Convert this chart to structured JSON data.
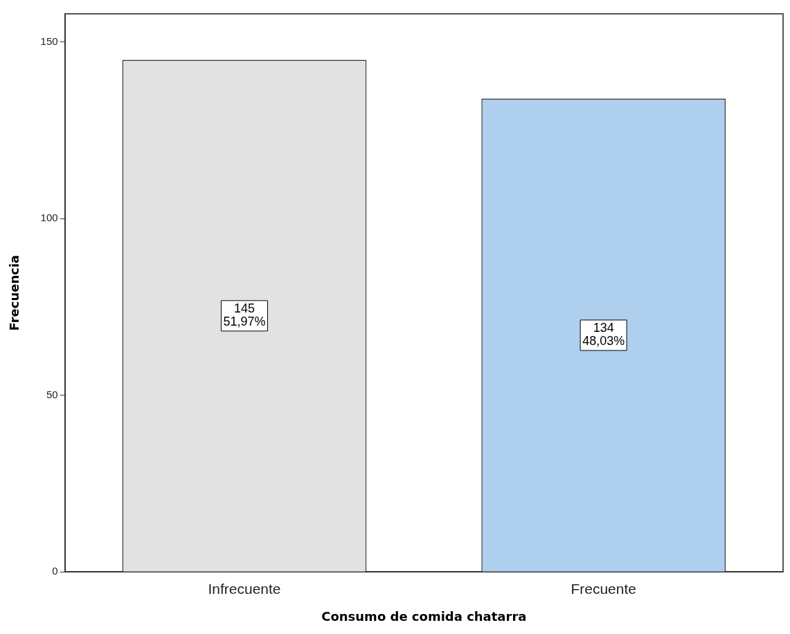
{
  "chart_data": {
    "type": "bar",
    "xlabel": "Consumo de comida chatarra",
    "ylabel": "Frecuencia",
    "categories": [
      "Infrecuente",
      "Frecuente"
    ],
    "values": [
      145,
      134
    ],
    "colors": [
      "#e2e2e2",
      "#aecfee"
    ],
    "value_labels": [
      "145\n51,97%",
      "134\n48,03%"
    ],
    "ylim": [
      0,
      158
    ],
    "yticks": [
      0,
      50,
      100,
      150
    ],
    "grid": false,
    "legend": false
  }
}
